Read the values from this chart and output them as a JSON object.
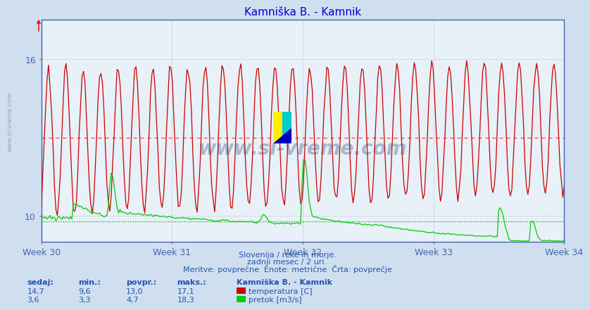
{
  "title": "Kamniška B. - Kamnik",
  "title_color": "#0000cc",
  "bg_color": "#d0dff0",
  "plot_bg_color": "#e8f0f8",
  "grid_color": "#b8c8d8",
  "grid_color_dashed": "#c8d0e0",
  "axis_color": "#4466aa",
  "text_color": "#2255aa",
  "x_weeks": [
    "Week 30",
    "Week 31",
    "Week 32",
    "Week 33",
    "Week 34"
  ],
  "x_week_positions": [
    0,
    84,
    168,
    252,
    336
  ],
  "n_points": 360,
  "temp_min": 9.6,
  "temp_max": 17.1,
  "temp_avg": 13.0,
  "temp_current": 14.7,
  "flow_min": 3.3,
  "flow_max": 18.3,
  "flow_avg": 4.7,
  "flow_current": 3.6,
  "y_min": 9.0,
  "y_max": 17.5,
  "y_ticks": [
    10,
    16
  ],
  "footer_line1": "Slovenija / reke in morje.",
  "footer_line2": "zadnji mesec / 2 uri.",
  "footer_line3": "Meritve: povprečne  Enote: metrične  Črta: povprečje",
  "legend_title": "Kamniška B. - Kamnik",
  "legend_temp_label": "temperatura [C]",
  "legend_flow_label": "pretok [m3/s]",
  "col_headers": [
    "sedaj:",
    "min.:",
    "povpr.:",
    "maks.:"
  ],
  "temp_row": [
    "14,7",
    "9,6",
    "13,0",
    "17,1"
  ],
  "flow_row": [
    "3,6",
    "3,3",
    "4,7",
    "18,3"
  ],
  "temp_color": "#cc0000",
  "flow_color": "#00cc00",
  "temp_avg_color": "#ee4444",
  "flow_avg_color": "#009900",
  "watermark_text": "www.si-vreme.com",
  "watermark_color": "#1a3a6a",
  "watermark_alpha": 0.3,
  "side_watermark": "www.si-vreme.com",
  "side_watermark_color": "#8899aa"
}
